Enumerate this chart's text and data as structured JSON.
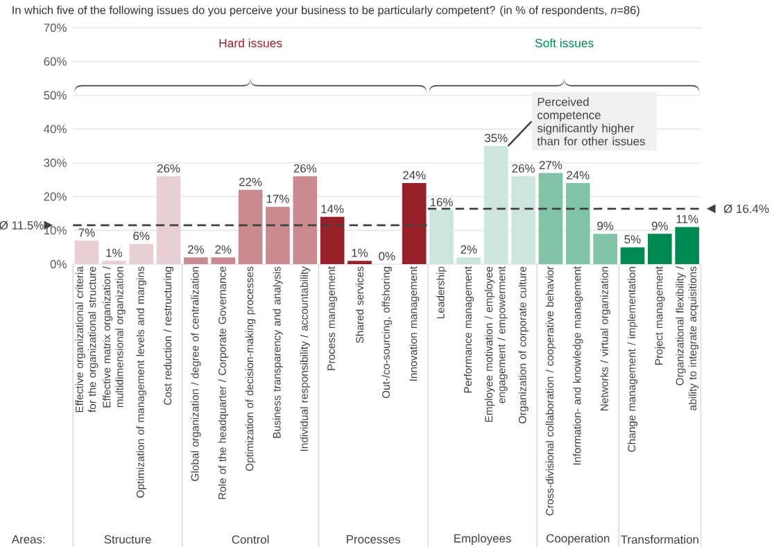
{
  "chart_data": {
    "type": "bar",
    "title": "In which five of the following issues do you perceive your business to be particularly competent? (in % of respondents, *n*=86)",
    "categories": [
      "Effective organizational criteria for the organizational structure",
      "Effective matrix organization / multidimensional organization",
      "Optimization of management levels and margins",
      "Cost reduction / restructuring",
      "Global organization / degree of centralization",
      "Role of the headquarter / Corporate Governance",
      "Optimization of decision-making processes",
      "Business transparency and analysis",
      "Individual responsibility / accountability",
      "Process management",
      "Shared services",
      "Out-/co-sourcing, offshoring",
      "Innovation management",
      "Leadership",
      "Performance management",
      "Employee motivation / employee engagement / empowerment",
      "Organization of corporate culture",
      "Cross-divisional collaboration / cooperative behavior",
      "Information- and knowledge management",
      "Networks / virtual organization",
      "Change management / implementation",
      "Project management",
      "Organizational flexibility / ability to integrate acquisitions"
    ],
    "values": [
      7,
      1,
      6,
      26,
      2,
      2,
      22,
      17,
      26,
      14,
      1,
      0,
      24,
      16,
      2,
      35,
      26,
      27,
      24,
      9,
      5,
      9,
      11
    ],
    "value_labels": [
      "7%",
      "1%",
      "6%",
      "26%",
      "2%",
      "2%",
      "22%",
      "17%",
      "26%",
      "14%",
      "1%",
      "0%",
      "24%",
      "16%",
      "2%",
      "35%",
      "26%",
      "27%",
      "24%",
      "9%",
      "5%",
      "9%",
      "11%"
    ],
    "colors": [
      "#e8cfd3",
      "#e8cfd3",
      "#e8cfd3",
      "#e8cfd3",
      "#c98a90",
      "#c98a90",
      "#c98a90",
      "#c98a90",
      "#c98a90",
      "#98202a",
      "#98202a",
      "#98202a",
      "#98202a",
      "#cce6dd",
      "#cce6dd",
      "#cce6dd",
      "#cce6dd",
      "#80c3a6",
      "#80c3a6",
      "#80c3a6",
      "#008a52",
      "#008a52",
      "#008a52"
    ],
    "ylim": [
      0,
      70
    ],
    "yticks": [
      {
        "value": 0,
        "label": "0%"
      },
      {
        "value": 10,
        "label": "10%"
      },
      {
        "value": 20,
        "label": "20%"
      },
      {
        "value": 30,
        "label": "30%"
      },
      {
        "value": 40,
        "label": "40%"
      },
      {
        "value": 50,
        "label": "50%"
      },
      {
        "value": 60,
        "label": "60%"
      },
      {
        "value": 70,
        "label": "70%"
      }
    ],
    "grid": "y",
    "ref_lines": [
      {
        "axis": "y",
        "value": 11.5,
        "label": "Ø 11.5%",
        "color": "#404040",
        "line_style": "dashed"
      },
      {
        "axis": "y",
        "value": 16.4,
        "label": "Ø 16.4%",
        "color": "#404040",
        "line_style": "dashed"
      }
    ],
    "annotations": [
      "Areas:",
      "Structure",
      "Control",
      "Processes",
      "Employees",
      "Cooperation",
      "Transformation",
      "Hard issues",
      "Soft issues",
      "Perceived competence significantly higher than for other issues"
    ]
  }
}
